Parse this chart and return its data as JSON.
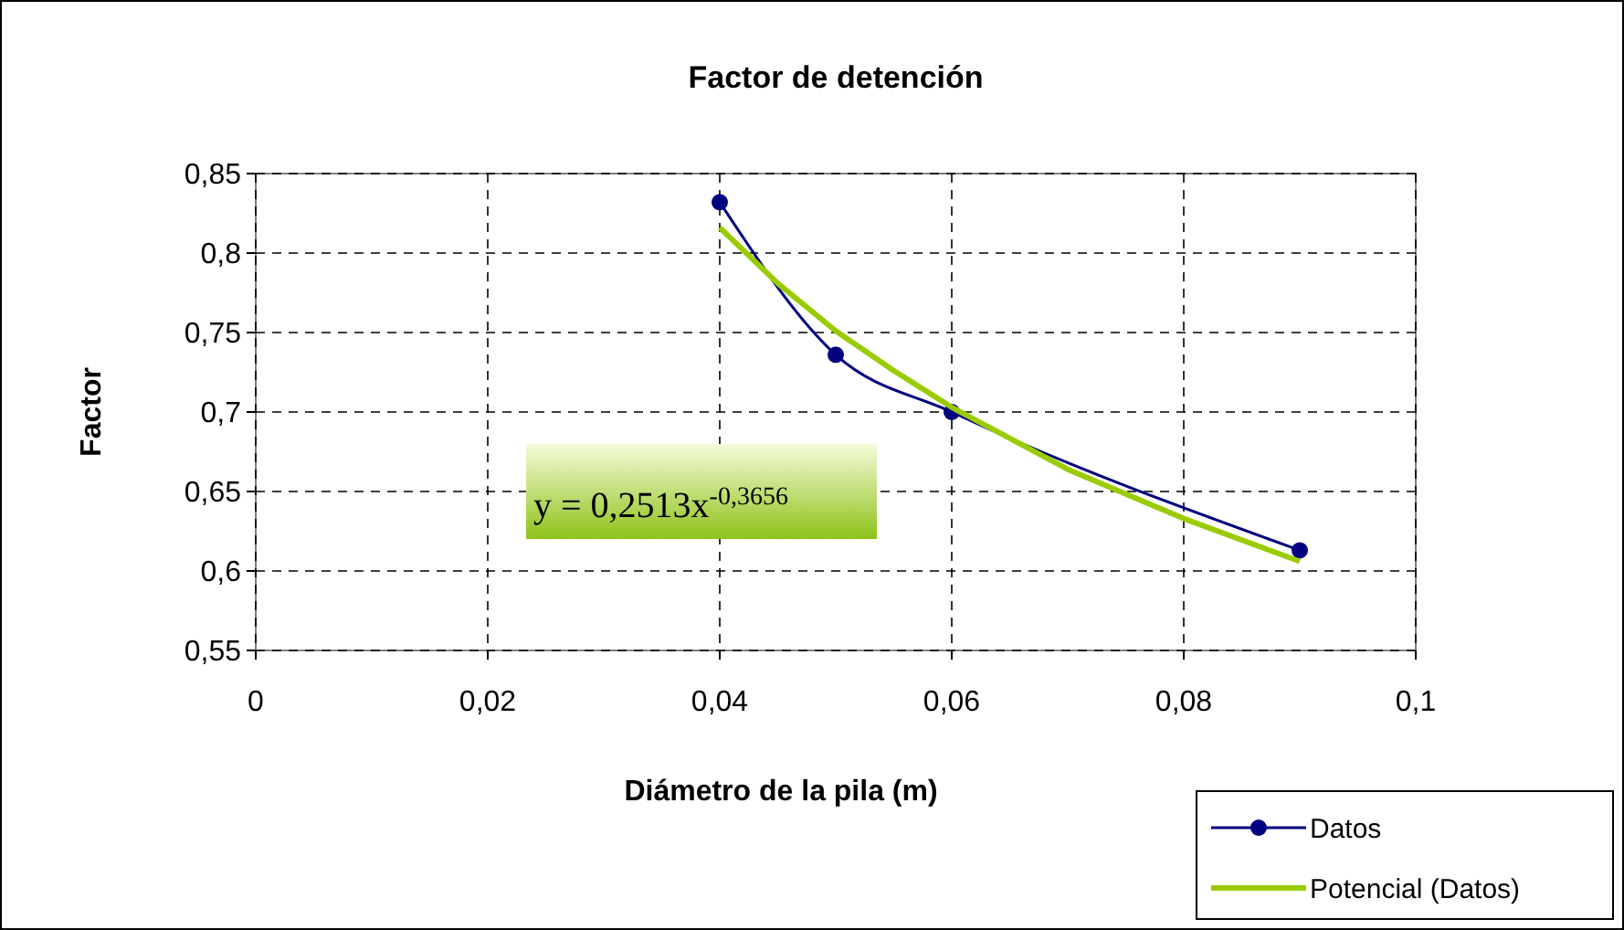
{
  "chart_data": {
    "type": "line",
    "title": "Factor de detención",
    "xlabel": "Diámetro de la pila (m)",
    "ylabel": "Factor",
    "x": [
      0.04,
      0.05,
      0.06,
      0.09
    ],
    "series": [
      {
        "name": "Datos",
        "color": "#000080",
        "values": [
          0.832,
          0.736,
          0.7,
          0.613
        ],
        "marker": "circle"
      },
      {
        "name": "Potencial (Datos)",
        "type": "line",
        "color": "#99cc00",
        "x": [
          0.04,
          0.045,
          0.05,
          0.055,
          0.06,
          0.07,
          0.08,
          0.09
        ],
        "values": [
          0.816,
          0.781,
          0.751,
          0.726,
          0.703,
          0.664,
          0.633,
          0.606
        ],
        "marker": "none"
      }
    ],
    "xlim": [
      0,
      0.1
    ],
    "xticks": [
      {
        "value": 0,
        "label": "0"
      },
      {
        "value": 0.02,
        "label": "0,02"
      },
      {
        "value": 0.04,
        "label": "0,04"
      },
      {
        "value": 0.06,
        "label": "0,06"
      },
      {
        "value": 0.08,
        "label": "0,08"
      },
      {
        "value": 0.1,
        "label": "0,1"
      }
    ],
    "ylim": [
      0.55,
      0.85
    ],
    "yticks": [
      {
        "value": 0.55,
        "label": "0,55"
      },
      {
        "value": 0.6,
        "label": "0,6"
      },
      {
        "value": 0.65,
        "label": "0,65"
      },
      {
        "value": 0.7,
        "label": "0,7"
      },
      {
        "value": 0.75,
        "label": "0,75"
      },
      {
        "value": 0.8,
        "label": "0,8"
      },
      {
        "value": 0.85,
        "label": "0,85"
      }
    ],
    "grid": true,
    "legend": "bottom right",
    "line_style": "solid",
    "annotations": [
      "y = 0,2513x$^{-0,3656}$"
    ]
  }
}
